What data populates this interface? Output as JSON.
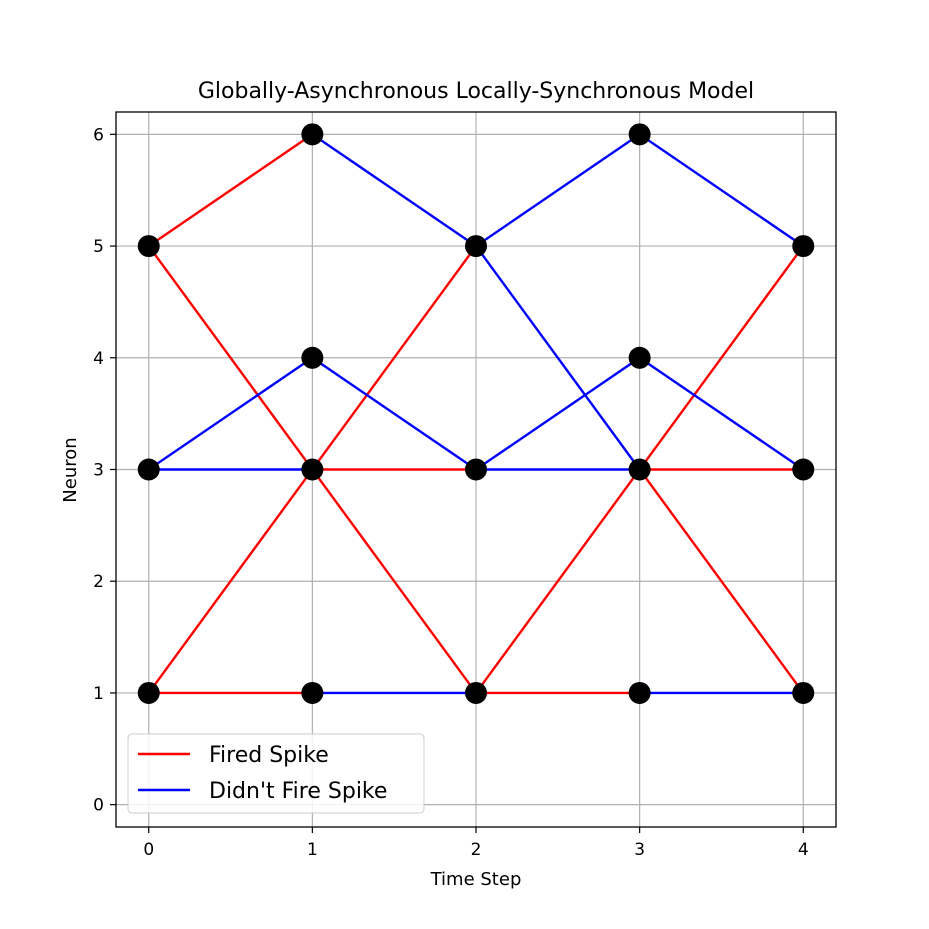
{
  "chart_data": {
    "type": "line",
    "title": "Globally-Asynchronous Locally-Synchronous Model",
    "xlabel": "Time Step",
    "ylabel": "Neuron",
    "xlim": [
      -0.2,
      4.2
    ],
    "ylim": [
      -0.2,
      6.2
    ],
    "xticks": [
      0,
      1,
      2,
      3,
      4
    ],
    "yticks": [
      0,
      1,
      2,
      3,
      4,
      5,
      6
    ],
    "grid": true,
    "legend_position": "lower-left",
    "series": [
      {
        "name": "Fired Spike",
        "color": "#ff0000",
        "segments": [
          [
            [
              0,
              5
            ],
            [
              1,
              6
            ]
          ],
          [
            [
              0,
              5
            ],
            [
              1,
              3
            ]
          ],
          [
            [
              0,
              1
            ],
            [
              1,
              3
            ]
          ],
          [
            [
              0,
              1
            ],
            [
              1,
              1
            ]
          ],
          [
            [
              1,
              3
            ],
            [
              2,
              5
            ]
          ],
          [
            [
              1,
              3
            ],
            [
              2,
              3
            ]
          ],
          [
            [
              1,
              3
            ],
            [
              2,
              1
            ]
          ],
          [
            [
              2,
              1
            ],
            [
              3,
              3
            ]
          ],
          [
            [
              2,
              1
            ],
            [
              3,
              1
            ]
          ],
          [
            [
              3,
              3
            ],
            [
              4,
              5
            ]
          ],
          [
            [
              3,
              3
            ],
            [
              4,
              3
            ]
          ],
          [
            [
              3,
              3
            ],
            [
              4,
              1
            ]
          ]
        ]
      },
      {
        "name": "Didn't Fire Spike",
        "color": "#0000ff",
        "segments": [
          [
            [
              0,
              3
            ],
            [
              1,
              4
            ]
          ],
          [
            [
              0,
              3
            ],
            [
              1,
              3
            ]
          ],
          [
            [
              1,
              6
            ],
            [
              2,
              5
            ]
          ],
          [
            [
              1,
              4
            ],
            [
              2,
              3
            ]
          ],
          [
            [
              1,
              1
            ],
            [
              2,
              1
            ]
          ],
          [
            [
              2,
              5
            ],
            [
              3,
              6
            ]
          ],
          [
            [
              2,
              5
            ],
            [
              3,
              3
            ]
          ],
          [
            [
              2,
              3
            ],
            [
              3,
              4
            ]
          ],
          [
            [
              2,
              3
            ],
            [
              3,
              3
            ]
          ],
          [
            [
              3,
              6
            ],
            [
              4,
              5
            ]
          ],
          [
            [
              3,
              4
            ],
            [
              4,
              3
            ]
          ],
          [
            [
              3,
              1
            ],
            [
              4,
              1
            ]
          ]
        ]
      }
    ],
    "nodes": [
      [
        0,
        1
      ],
      [
        0,
        3
      ],
      [
        0,
        5
      ],
      [
        1,
        1
      ],
      [
        1,
        3
      ],
      [
        1,
        4
      ],
      [
        1,
        6
      ],
      [
        2,
        1
      ],
      [
        2,
        3
      ],
      [
        2,
        5
      ],
      [
        3,
        1
      ],
      [
        3,
        3
      ],
      [
        3,
        4
      ],
      [
        3,
        6
      ],
      [
        4,
        1
      ],
      [
        4,
        3
      ],
      [
        4,
        5
      ]
    ],
    "node_color": "#000000"
  }
}
